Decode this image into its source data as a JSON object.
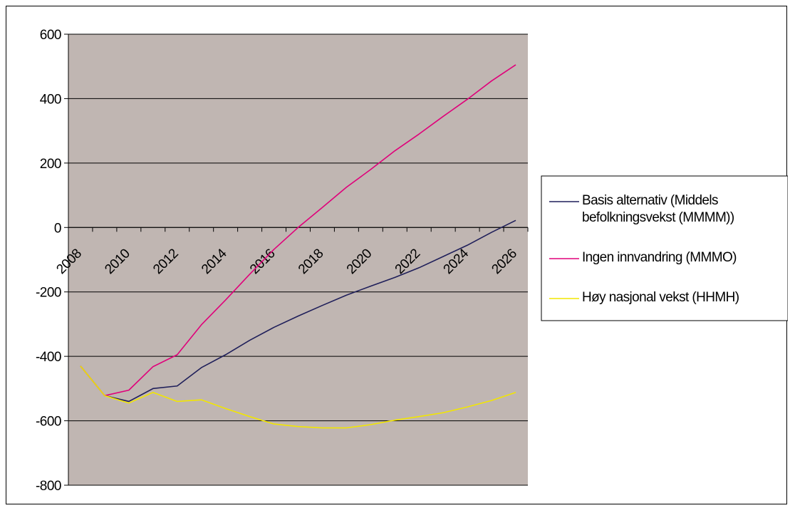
{
  "chart_data": {
    "type": "line",
    "title": "",
    "xlabel": "",
    "ylabel": "",
    "ylim": [
      -800,
      600
    ],
    "yticks": [
      600,
      400,
      200,
      0,
      -200,
      -400,
      -600,
      -800
    ],
    "xlim": [
      2008,
      2027
    ],
    "xticks": [
      2008,
      2010,
      2012,
      2014,
      2016,
      2018,
      2020,
      2022,
      2024,
      2026
    ],
    "grid": "horizontal",
    "plot_background": "#C0B6B2",
    "legend_position": "right",
    "x": [
      2008,
      2009,
      2010,
      2011,
      2012,
      2013,
      2014,
      2015,
      2016,
      2017,
      2018,
      2019,
      2020,
      2021,
      2022,
      2023,
      2024,
      2025,
      2026
    ],
    "series": [
      {
        "name_lines": [
          "Basis alternativ (Middels",
          "befolkningsvekst (MMMM))"
        ],
        "color": "#1F1F5A",
        "values": [
          -430,
          -522,
          -540,
          -500,
          -492,
          -435,
          -395,
          -350,
          -310,
          -275,
          -242,
          -210,
          -182,
          -155,
          -125,
          -90,
          -55,
          -15,
          22
        ]
      },
      {
        "name_lines": [
          "Ingen innvandring (MMMO)"
        ],
        "color": "#E0007A",
        "values": [
          -430,
          -522,
          -505,
          -432,
          -395,
          -302,
          -225,
          -145,
          -68,
          0,
          62,
          125,
          180,
          238,
          290,
          345,
          398,
          455,
          505
        ]
      },
      {
        "name_lines": [
          "Høy nasjonal vekst (HHMH)"
        ],
        "color": "#F2E600",
        "values": [
          -430,
          -522,
          -545,
          -512,
          -540,
          -535,
          -562,
          -587,
          -610,
          -618,
          -622,
          -622,
          -612,
          -598,
          -587,
          -575,
          -557,
          -537,
          -512
        ]
      }
    ]
  }
}
